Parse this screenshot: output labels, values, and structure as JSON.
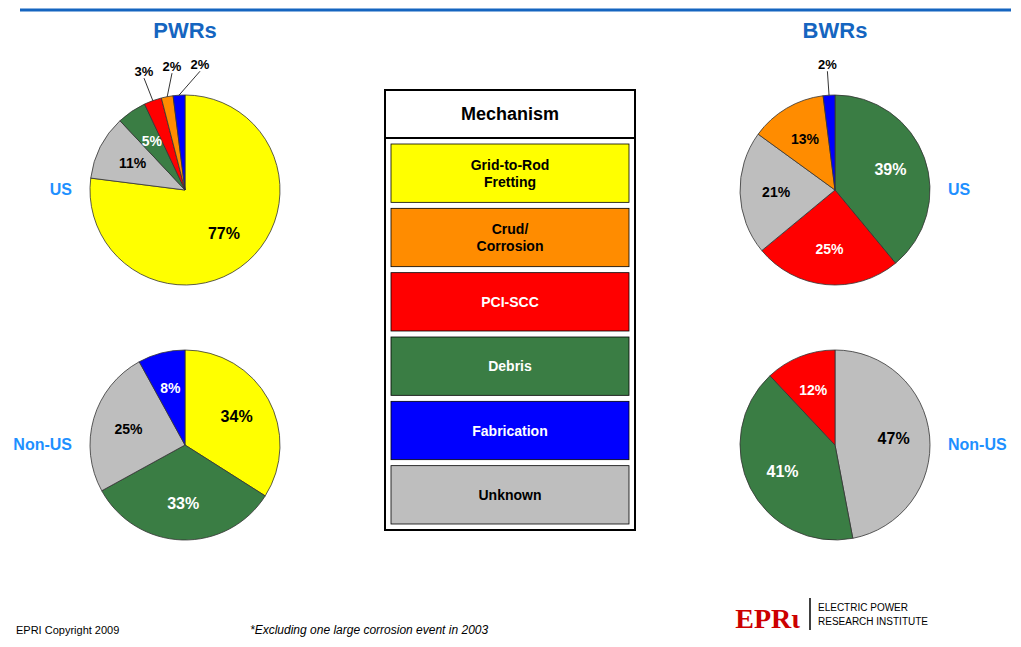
{
  "chart_data": [
    {
      "type": "pie",
      "title": "US",
      "annotations": [
        "PWRs"
      ],
      "values": [
        77,
        11,
        5,
        3,
        2,
        2
      ],
      "value_labels": [
        "77%",
        "11%",
        "5%",
        "3%",
        "2%",
        "2%"
      ],
      "colors": [
        "#FFFF00",
        "#BEBEBE",
        "#3A7D44",
        "#FF0000",
        "#FF8C00",
        "#0000FF"
      ],
      "data_labels": true
    },
    {
      "type": "pie",
      "title": "Non-US",
      "values": [
        34,
        33,
        25,
        8
      ],
      "value_labels": [
        "34%",
        "33%",
        "25%",
        "8%"
      ],
      "colors": [
        "#FFFF00",
        "#3A7D44",
        "#BEBEBE",
        "#0000FF"
      ],
      "data_labels": true
    },
    {
      "type": "pie",
      "title": "US",
      "annotations": [
        "BWRs"
      ],
      "values": [
        39,
        25,
        21,
        13,
        2
      ],
      "value_labels": [
        "39%",
        "25%",
        "21%",
        "13%",
        "2%"
      ],
      "colors": [
        "#3A7D44",
        "#FF0000",
        "#BEBEBE",
        "#FF8C00",
        "#0000FF"
      ],
      "data_labels": true
    },
    {
      "type": "pie",
      "title": "Non-US",
      "values": [
        47,
        41,
        12
      ],
      "value_labels": [
        "47%",
        "41%",
        "12%"
      ],
      "colors": [
        "#BEBEBE",
        "#3A7D44",
        "#FF0000"
      ],
      "data_labels": true
    },
    {
      "type": "legend",
      "title": "Mechanism",
      "categories": [
        "Grid-to-Rod\nFretting",
        "Crud/\nCorrosion",
        "PCI-SCC",
        "Debris",
        "Fabrication",
        "Unknown"
      ],
      "colors": [
        "#FFFF00",
        "#FF8C00",
        "#FF0000",
        "#3A7D44",
        "#0000FF",
        "#BEBEBE"
      ],
      "annotations": [
        "EPRI Copyright 2009",
        "*Excluding one large corrosion event in 2003",
        "EPRι",
        "ELECTRIC POWER",
        "RESEARCH INSTITUTE"
      ]
    }
  ]
}
